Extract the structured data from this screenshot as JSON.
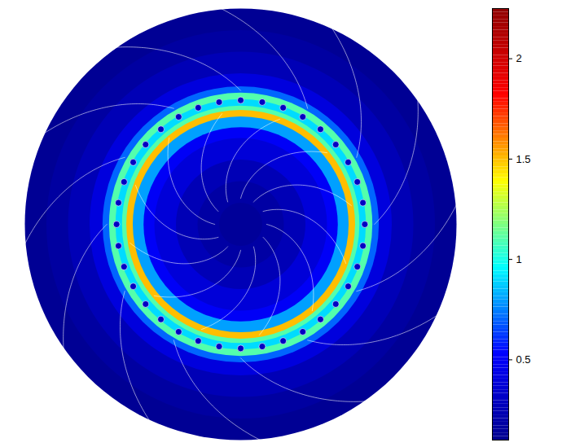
{
  "chart_data": {
    "type": "heatmap",
    "field": {
      "r": [
        0,
        0.1,
        0.2,
        0.3,
        0.4,
        0.45,
        0.5,
        0.53,
        0.55,
        0.58,
        0.61,
        0.64,
        0.7,
        0.8,
        0.9,
        1.0
      ],
      "values": [
        0.12,
        0.14,
        0.18,
        0.25,
        0.38,
        0.5,
        0.8,
        1.5,
        1.1,
        0.9,
        1.1,
        0.7,
        0.4,
        0.25,
        0.17,
        0.12
      ]
    },
    "slots": {
      "count": 36,
      "r": 0.575,
      "value": 0.3
    },
    "colorbar": {
      "range": [
        0.1,
        2.25
      ],
      "ticks": [
        0.5,
        1,
        1.5,
        2
      ]
    }
  }
}
